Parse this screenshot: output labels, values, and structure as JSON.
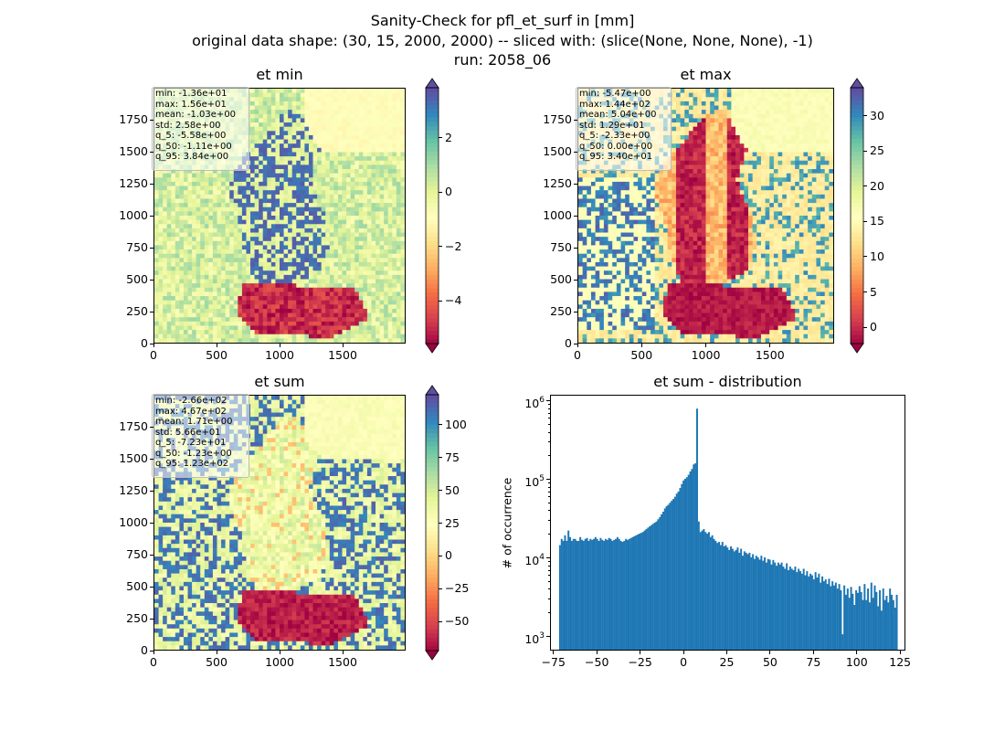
{
  "figure": {
    "title_lines": [
      "Sanity-Check for pfl_et_surf in [mm]",
      "original data shape: (30, 15, 2000, 2000) -- sliced with: (slice(None, None, None), -1)",
      "run: 2058_06"
    ]
  },
  "colors": {
    "spectral": [
      "#9e0142",
      "#d53e4f",
      "#f46d43",
      "#fdae61",
      "#fee08b",
      "#ffffbf",
      "#e6f598",
      "#abdda4",
      "#66c2a5",
      "#3288bd",
      "#5e4fa2"
    ],
    "hist_bar": "#1f77b4"
  },
  "chart_data": [
    {
      "type": "heatmap",
      "title": "et min",
      "xlim": [
        0,
        2000
      ],
      "ylim": [
        0,
        2000
      ],
      "xticks": [
        "0",
        "500",
        "1000",
        "1500"
      ],
      "yticks": [
        "0",
        "250",
        "500",
        "750",
        "1000",
        "1250",
        "1500",
        "1750"
      ],
      "colorbar": {
        "min": -5.58,
        "max": 3.84,
        "ticks": [
          "2",
          "0",
          "−2",
          "−4"
        ],
        "tick_values": [
          2,
          0,
          -2,
          -4
        ]
      },
      "stats": [
        "min: -1.36e+01",
        "max: 1.56e+01",
        "mean: -1.03e+00",
        "std: 2.58e+00",
        "q_5: -5.58e+00",
        "q_50: -1.11e+00",
        "q_95: 3.84e+00"
      ]
    },
    {
      "type": "heatmap",
      "title": "et max",
      "xlim": [
        0,
        2000
      ],
      "ylim": [
        0,
        2000
      ],
      "xticks": [
        "0",
        "500",
        "1000",
        "1500"
      ],
      "yticks": [
        "0",
        "250",
        "500",
        "750",
        "1000",
        "1250",
        "1500",
        "1750"
      ],
      "colorbar": {
        "min": -2.33,
        "max": 34.0,
        "ticks": [
          "30",
          "25",
          "20",
          "15",
          "10",
          "5",
          "0"
        ],
        "tick_values": [
          30,
          25,
          20,
          15,
          10,
          5,
          0
        ]
      },
      "stats": [
        "min: -5.47e+00",
        "max: 1.44e+02",
        "mean: 5.04e+00",
        "std: 1.29e+01",
        "q_5: -2.33e+00",
        "q_50: 0.00e+00",
        "q_95: 3.40e+01"
      ]
    },
    {
      "type": "heatmap",
      "title": "et sum",
      "xlim": [
        0,
        2000
      ],
      "ylim": [
        0,
        2000
      ],
      "xticks": [
        "0",
        "500",
        "1000",
        "1500"
      ],
      "yticks": [
        "0",
        "250",
        "500",
        "750",
        "1000",
        "1250",
        "1500",
        "1750"
      ],
      "colorbar": {
        "min": -72.3,
        "max": 123,
        "ticks": [
          "100",
          "75",
          "50",
          "25",
          "0",
          "−25",
          "−50"
        ],
        "tick_values": [
          100,
          75,
          50,
          25,
          0,
          -25,
          -50
        ]
      },
      "stats": [
        "min: -2.66e+02",
        "max: 4.67e+02",
        "mean: 1.71e+00",
        "std: 5.66e+01",
        "q_5: -7.23e+01",
        "q_50: -1.23e+00",
        "q_95: 1.23e+02"
      ]
    },
    {
      "type": "bar",
      "title": "et sum - distribution",
      "ylabel": "# of occurrence",
      "yscale": "log",
      "xlim": [
        -77,
        127
      ],
      "ylim": [
        700,
        1200000
      ],
      "xticks": [
        "−75",
        "−50",
        "−25",
        "0",
        "25",
        "50",
        "75",
        "100",
        "125"
      ],
      "xtick_values": [
        -75,
        -50,
        -25,
        0,
        25,
        50,
        75,
        100,
        125
      ],
      "ytick_labels": [
        {
          "base": "10",
          "exp": "3",
          "value": 1000
        },
        {
          "base": "10",
          "exp": "4",
          "value": 10000
        },
        {
          "base": "10",
          "exp": "5",
          "value": 100000
        },
        {
          "base": "10",
          "exp": "6",
          "value": 1000000
        }
      ],
      "bin_edges_range": [
        -72.3,
        123
      ],
      "bin_count": 200,
      "counts": [
        15000,
        18000,
        17000,
        20000,
        17000,
        23000,
        19000,
        17000,
        18000,
        18000,
        17000,
        17000,
        19000,
        17500,
        17000,
        18000,
        18500,
        17000,
        18000,
        17500,
        18000,
        19000,
        18000,
        17000,
        18500,
        17500,
        17000,
        18000,
        17500,
        18500,
        18000,
        17000,
        17500,
        18000,
        19000,
        18000,
        17000,
        16500,
        17000,
        18000,
        17500,
        18000,
        18500,
        19000,
        19500,
        20000,
        20500,
        21000,
        21500,
        22000,
        23000,
        24000,
        25000,
        26000,
        27000,
        28000,
        29000,
        30000,
        32000,
        34000,
        37000,
        40000,
        44000,
        47000,
        49000,
        52000,
        55000,
        58000,
        62000,
        68000,
        72000,
        80000,
        90000,
        100000,
        105000,
        110000,
        118000,
        130000,
        140000,
        160000,
        165000,
        820000,
        30000,
        22000,
        23000,
        24000,
        22000,
        21000,
        22000,
        19000,
        20000,
        18000,
        17000,
        16000,
        16500,
        15000,
        16500,
        14500,
        15000,
        14000,
        13000,
        14500,
        13500,
        12500,
        13000,
        14000,
        12000,
        13500,
        11000,
        12500,
        12000,
        11500,
        12000,
        10500,
        11500,
        10000,
        11000,
        10500,
        9800,
        11000,
        9500,
        10500,
        9000,
        10000,
        9800,
        8500,
        9700,
        9000,
        8200,
        9000,
        8500,
        9000,
        8000,
        7500,
        8800,
        7200,
        8000,
        7500,
        7200,
        8000,
        6800,
        7500,
        7000,
        6500,
        7500,
        6200,
        7000,
        6000,
        6500,
        6200,
        5500,
        6800,
        5800,
        6500,
        5000,
        6000,
        5200,
        5500,
        4800,
        5600,
        4500,
        5200,
        4600,
        5000,
        4200,
        4800,
        4000,
        1100,
        4600,
        3500,
        4200,
        3200,
        4400,
        3600,
        2600,
        4000,
        3700,
        4500,
        3800,
        3000,
        4800,
        3000,
        4200,
        2800,
        5000,
        3200,
        4600,
        3800,
        2500,
        4000,
        2200,
        4200,
        3000,
        3400,
        2800,
        4200,
        3500,
        3000,
        2400,
        3500
      ]
    }
  ]
}
